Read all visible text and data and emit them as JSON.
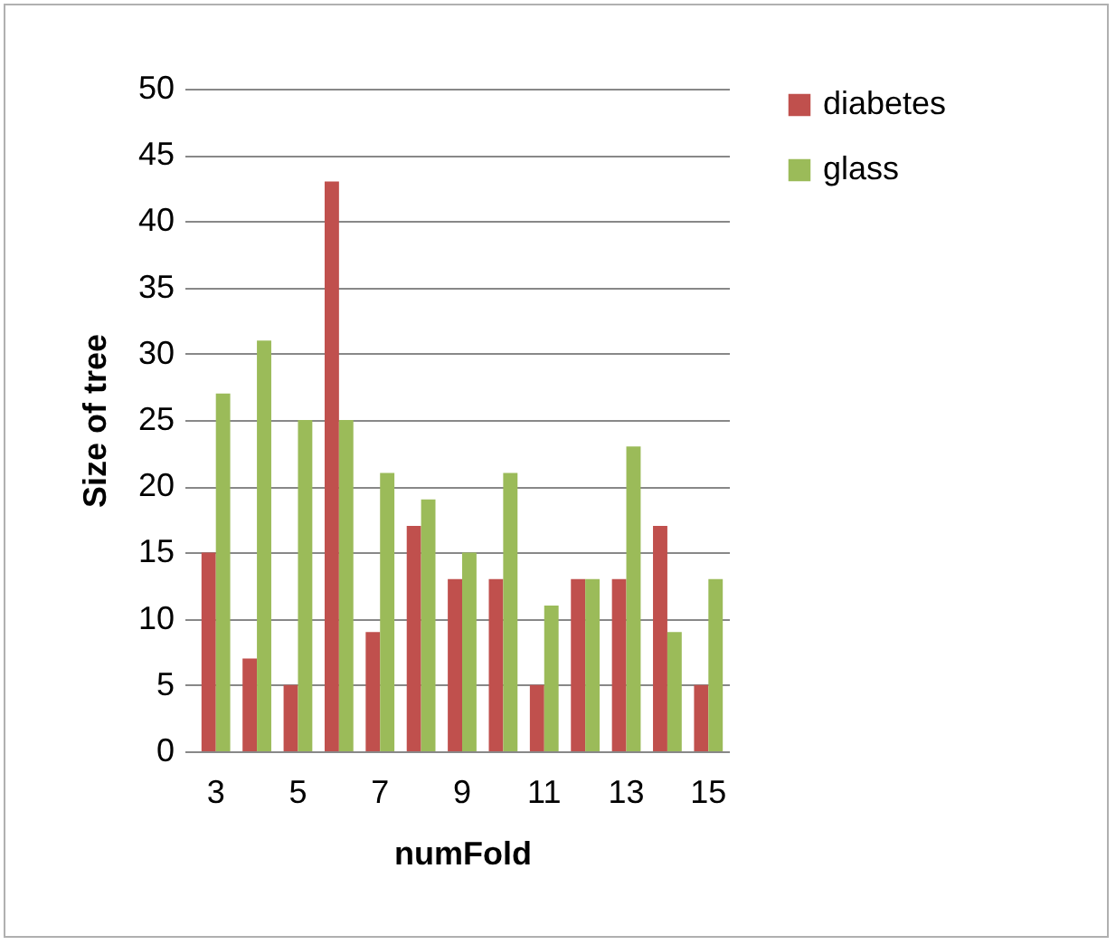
{
  "chart_data": {
    "type": "bar",
    "xlabel": "numFold",
    "ylabel": "Size of tree",
    "categories": [
      "3",
      null,
      "5",
      null,
      "7",
      null,
      "9",
      null,
      "11",
      null,
      "13",
      null,
      "15"
    ],
    "series": [
      {
        "name": "diabetes",
        "color": "#c0504d",
        "values": [
          15,
          7,
          5,
          43,
          9,
          17,
          13,
          13,
          5,
          13,
          13,
          17,
          5
        ]
      },
      {
        "name": "glass",
        "color": "#9bbb59",
        "values": [
          27,
          31,
          25,
          25,
          21,
          19,
          15,
          21,
          11,
          13,
          23,
          9,
          13
        ]
      }
    ],
    "ylim": [
      0,
      50
    ],
    "yticks": [
      0,
      5,
      10,
      15,
      20,
      25,
      30,
      35,
      40,
      45,
      50
    ],
    "grid": "y",
    "legend": "right"
  }
}
